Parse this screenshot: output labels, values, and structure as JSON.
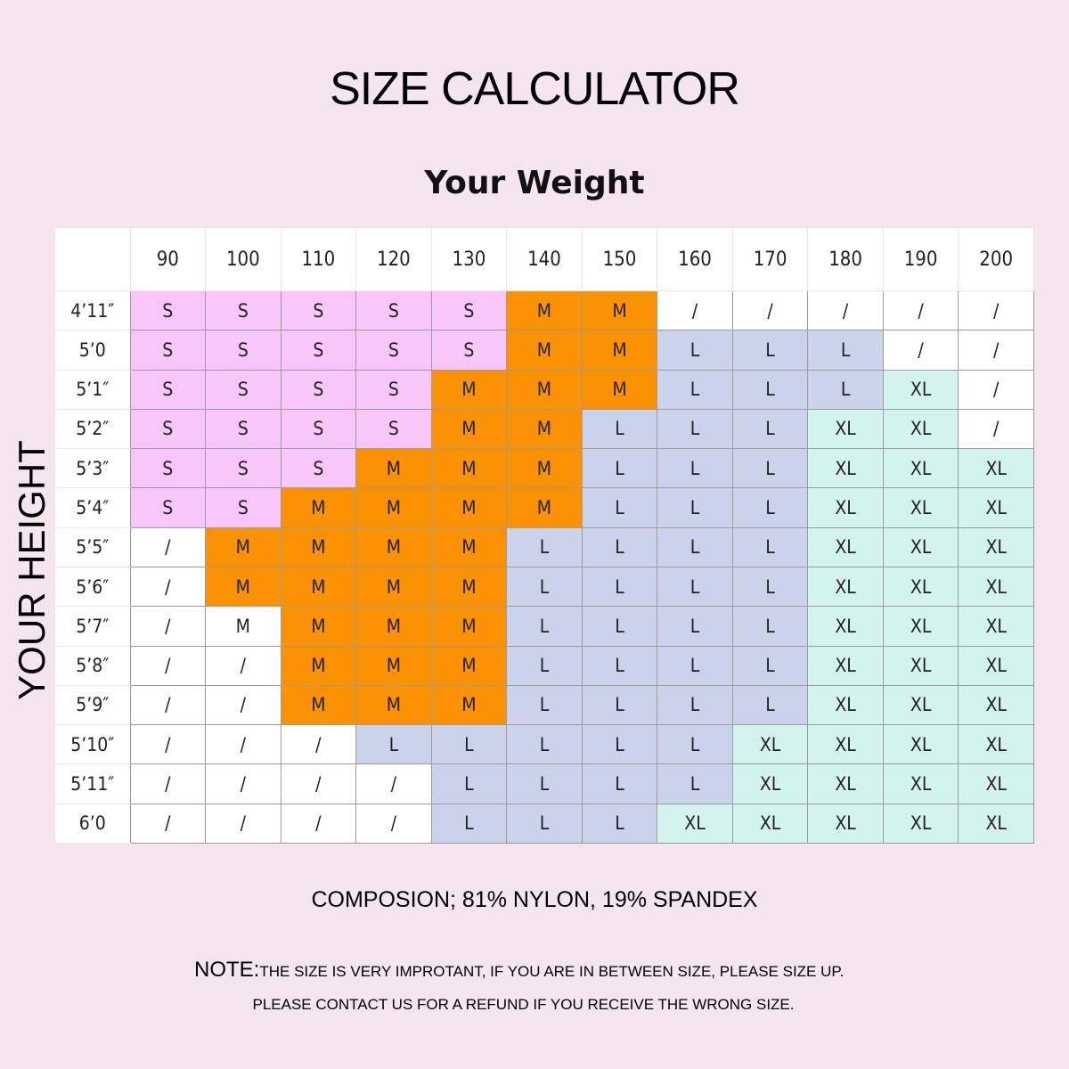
{
  "title": "SIZE CALCULATOR",
  "weight_heading": "Your Weight",
  "height_label": "YOUR HEIGHT",
  "colors": {
    "S": "#f8c6f8",
    "M": "#fb9203",
    "L": "#cbd3ea",
    "XL": "#d2f3ee",
    "none": "#ffffff"
  },
  "weights": [
    "90",
    "100",
    "110",
    "120",
    "130",
    "140",
    "150",
    "160",
    "170",
    "180",
    "190",
    "200"
  ],
  "rows": [
    {
      "height": "4’11″",
      "sizes": [
        "S",
        "S",
        "S",
        "S",
        "S",
        "M",
        "M",
        "/",
        "/",
        "/",
        "/",
        "/"
      ]
    },
    {
      "height": "5’0",
      "sizes": [
        "S",
        "S",
        "S",
        "S",
        "S",
        "M",
        "M",
        "L",
        "L",
        "L",
        "/",
        "/"
      ]
    },
    {
      "height": "5’1″",
      "sizes": [
        "S",
        "S",
        "S",
        "S",
        "M",
        "M",
        "M",
        "L",
        "L",
        "L",
        "XL",
        "/"
      ]
    },
    {
      "height": "5’2″",
      "sizes": [
        "S",
        "S",
        "S",
        "S",
        "M",
        "M",
        "L",
        "L",
        "L",
        "XL",
        "XL",
        "/"
      ]
    },
    {
      "height": "5’3″",
      "sizes": [
        "S",
        "S",
        "S",
        "M",
        "M",
        "M",
        "L",
        "L",
        "L",
        "XL",
        "XL",
        "XL"
      ]
    },
    {
      "height": "5’4″",
      "sizes": [
        "S",
        "S",
        "M",
        "M",
        "M",
        "M",
        "L",
        "L",
        "L",
        "XL",
        "XL",
        "XL"
      ]
    },
    {
      "height": "5’5″",
      "sizes": [
        "/",
        "M",
        "M",
        "M",
        "M",
        "L",
        "L",
        "L",
        "L",
        "XL",
        "XL",
        "XL"
      ]
    },
    {
      "height": "5’6″",
      "sizes": [
        "/",
        "M",
        "M",
        "M",
        "M",
        "L",
        "L",
        "L",
        "L",
        "XL",
        "XL",
        "XL"
      ]
    },
    {
      "height": "5’7″",
      "sizes": [
        "/",
        "M*",
        "M",
        "M",
        "M",
        "L",
        "L",
        "L",
        "L",
        "XL",
        "XL",
        "XL"
      ]
    },
    {
      "height": "5’8″",
      "sizes": [
        "/",
        "/",
        "M",
        "M",
        "M",
        "L",
        "L",
        "L",
        "L",
        "XL",
        "XL",
        "XL"
      ]
    },
    {
      "height": "5’9″",
      "sizes": [
        "/",
        "/",
        "M",
        "M",
        "M",
        "L",
        "L",
        "L",
        "L",
        "XL",
        "XL",
        "XL"
      ]
    },
    {
      "height": "5’10″",
      "sizes": [
        "/",
        "/",
        "/",
        "L",
        "L",
        "L",
        "L",
        "L",
        "XL",
        "XL",
        "XL",
        "XL"
      ]
    },
    {
      "height": "5’11″",
      "sizes": [
        "/",
        "/",
        "/",
        "/",
        "L",
        "L",
        "L",
        "L",
        "XL",
        "XL",
        "XL",
        "XL"
      ]
    },
    {
      "height": "6’0",
      "sizes": [
        "/",
        "/",
        "/",
        "/",
        "L",
        "L",
        "L",
        "XL",
        "XL",
        "XL",
        "XL",
        "XL"
      ]
    }
  ],
  "composition": "COMPOSION; 81% NYLON, 19% SPANDEX",
  "note": {
    "label": "NOTE:",
    "line1": "THE SIZE IS VERY IMPROTANT, IF YOU ARE IN BETWEEN SIZE, PLEASE SIZE UP.",
    "line2": "PLEASE CONTACT US FOR A REFUND IF YOU RECEIVE THE WRONG SIZE."
  }
}
